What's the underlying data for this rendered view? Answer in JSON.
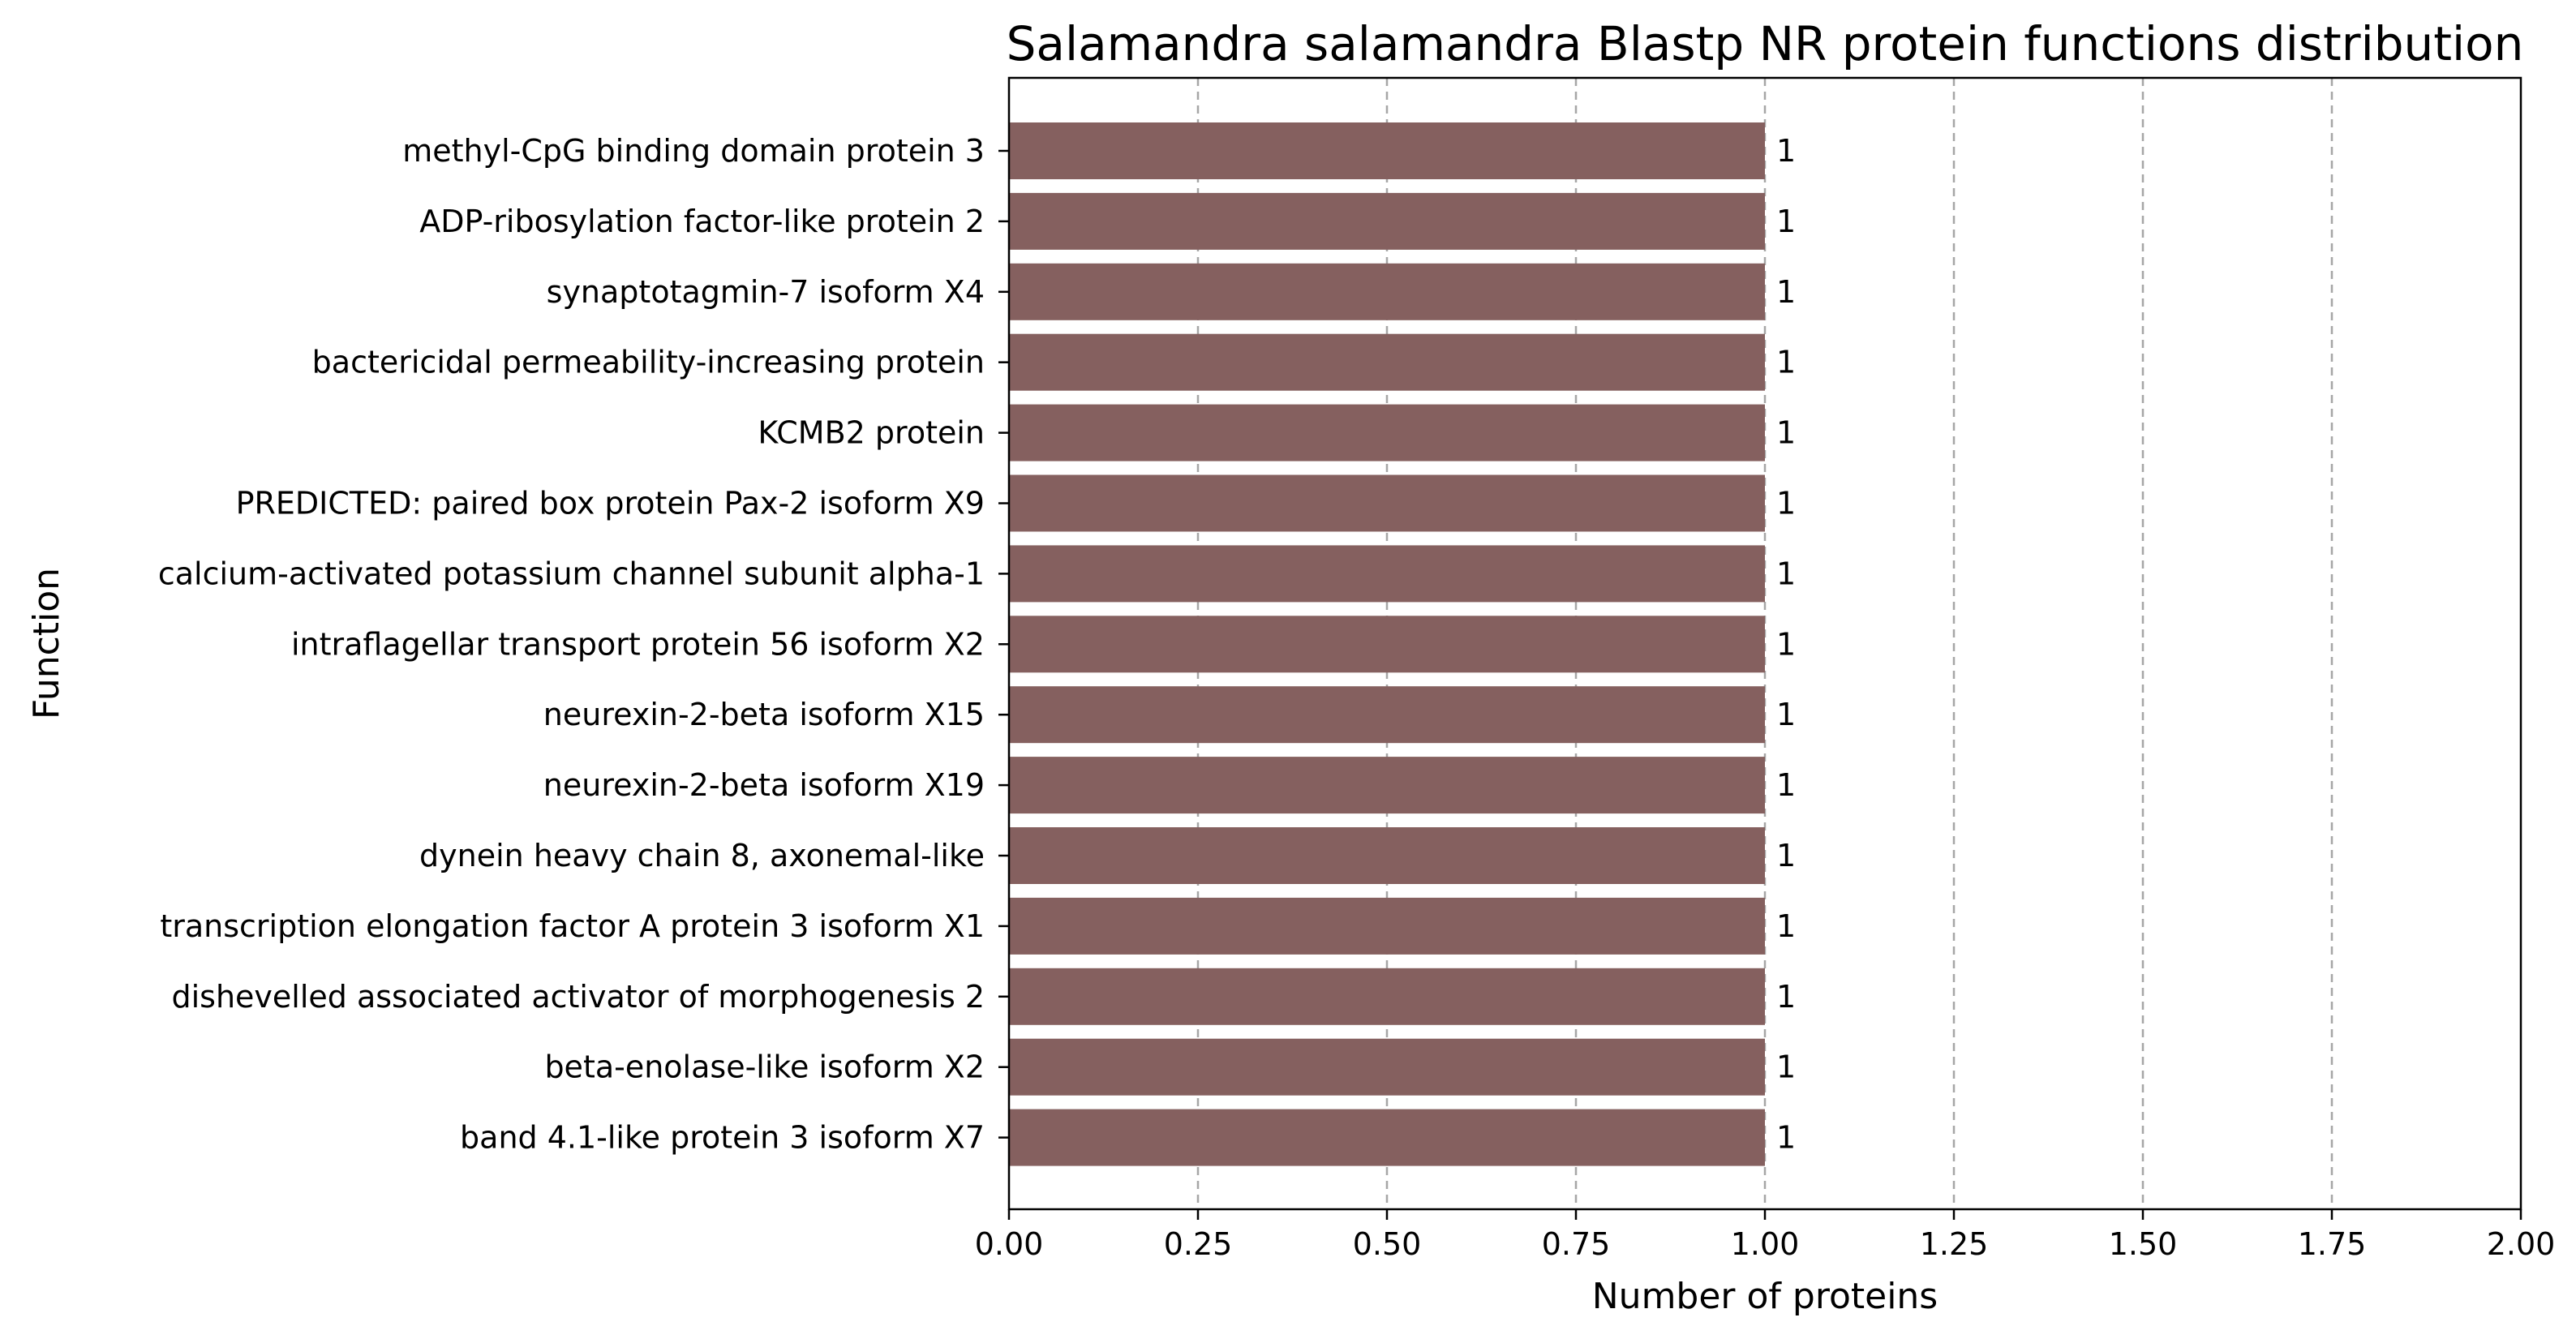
{
  "chart_data": {
    "type": "bar",
    "orientation": "horizontal",
    "title": "Salamandra salamandra Blastp NR protein functions distribution",
    "xlabel": "Number of proteins",
    "ylabel": "Function",
    "xlim": [
      0,
      2
    ],
    "xticks": [
      0,
      0.25,
      0.5,
      0.75,
      1,
      1.25,
      1.5,
      1.75,
      2
    ],
    "xtick_labels": [
      "0.00",
      "0.25",
      "0.50",
      "0.75",
      "1.00",
      "1.25",
      "1.50",
      "1.75",
      "2.00"
    ],
    "grid": "x-dashed",
    "bar_color": "#85605f",
    "categories": [
      "methyl-CpG binding domain protein 3",
      "ADP-ribosylation factor-like protein 2",
      "synaptotagmin-7 isoform X4",
      "bactericidal permeability-increasing protein",
      "KCMB2 protein",
      "PREDICTED: paired box protein Pax-2 isoform X9",
      "calcium-activated potassium channel subunit alpha-1",
      "intraflagellar transport protein 56 isoform X2",
      "neurexin-2-beta isoform X15",
      "neurexin-2-beta isoform X19",
      "dynein heavy chain 8, axonemal-like",
      "transcription elongation factor A protein 3 isoform X1",
      "dishevelled associated activator of morphogenesis 2",
      "beta-enolase-like isoform X2",
      "band 4.1-like protein 3 isoform X7"
    ],
    "values": [
      1,
      1,
      1,
      1,
      1,
      1,
      1,
      1,
      1,
      1,
      1,
      1,
      1,
      1,
      1
    ],
    "data_labels": [
      "1",
      "1",
      "1",
      "1",
      "1",
      "1",
      "1",
      "1",
      "1",
      "1",
      "1",
      "1",
      "1",
      "1",
      "1"
    ]
  }
}
